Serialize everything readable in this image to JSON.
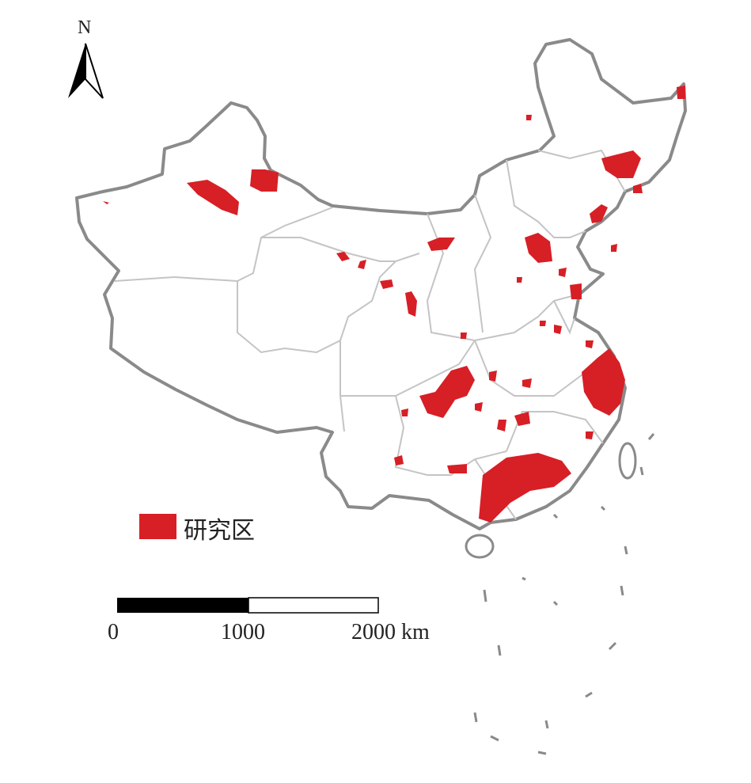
{
  "north_arrow": {
    "label": "N"
  },
  "legend": {
    "label": "研究区",
    "color": "#d71f26"
  },
  "scale_bar": {
    "ticks": [
      "0",
      "1000",
      "2000 km"
    ]
  },
  "colors": {
    "study_area": "#d71f26",
    "border": "#8a8a8a",
    "province_line": "#c4c4c4"
  }
}
